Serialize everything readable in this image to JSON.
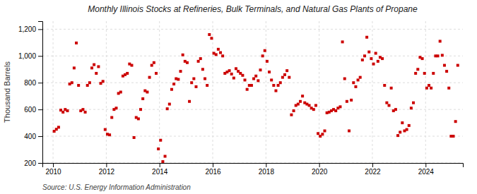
{
  "chart_data": {
    "type": "scatter",
    "title": "Monthly Illinois Stocks at Refineries, Bulk Terminals, and Natural Gas Plants of Propane",
    "y_label": "Thousand Barrels",
    "annotations": [
      "Source: U.S. Energy Information Administration"
    ],
    "color": "#cc0000",
    "marker": "square",
    "grid": true,
    "xlim": [
      2009.6,
      2025.4
    ],
    "ylim": [
      200,
      1260
    ],
    "xticks": [
      2010,
      2012,
      2014,
      2016,
      2018,
      2020,
      2022,
      2024
    ],
    "yticks": [
      200,
      400,
      600,
      800,
      {
        "value": 1000,
        "label": "1,000"
      },
      {
        "value": 1200,
        "label": "1,200"
      }
    ],
    "x": [
      2010.0416666666667,
      2010.125,
      2010.2083333333333,
      2010.2916666666667,
      2010.375,
      2010.4583333333333,
      2010.5416666666667,
      2010.625,
      2010.7083333333333,
      2010.7916666666667,
      2010.875,
      2010.9583333333333,
      2011.0416666666667,
      2011.125,
      2011.2083333333333,
      2011.2916666666667,
      2011.375,
      2011.4583333333333,
      2011.5416666666667,
      2011.625,
      2011.7083333333333,
      2011.7916666666667,
      2011.875,
      2011.9583333333333,
      2012.0416666666667,
      2012.125,
      2012.2083333333333,
      2012.2916666666667,
      2012.375,
      2012.4583333333333,
      2012.5416666666667,
      2012.625,
      2012.7083333333333,
      2012.7916666666667,
      2012.875,
      2012.9583333333333,
      2013.0416666666667,
      2013.125,
      2013.2083333333333,
      2013.2916666666667,
      2013.375,
      2013.4583333333333,
      2013.5416666666667,
      2013.625,
      2013.7083333333333,
      2013.7916666666667,
      2013.875,
      2013.9583333333333,
      2014.0416666666667,
      2014.125,
      2014.2083333333333,
      2014.2916666666667,
      2014.375,
      2014.4583333333333,
      2014.5416666666667,
      2014.625,
      2014.7083333333333,
      2014.7916666666667,
      2014.875,
      2014.9583333333333,
      2015.0416666666667,
      2015.125,
      2015.2083333333333,
      2015.2916666666667,
      2015.375,
      2015.4583333333333,
      2015.5416666666667,
      2015.625,
      2015.7083333333333,
      2015.7916666666667,
      2015.875,
      2015.9583333333333,
      2016.0416666666667,
      2016.125,
      2016.2083333333333,
      2016.2916666666667,
      2016.375,
      2016.4583333333333,
      2016.5416666666667,
      2016.625,
      2016.7083333333333,
      2016.7916666666667,
      2016.875,
      2016.9583333333333,
      2017.0416666666667,
      2017.125,
      2017.2083333333333,
      2017.2916666666667,
      2017.375,
      2017.4583333333333,
      2017.5416666666667,
      2017.625,
      2017.7083333333333,
      2017.7916666666667,
      2017.875,
      2017.9583333333333,
      2018.0416666666667,
      2018.125,
      2018.2083333333333,
      2018.2916666666667,
      2018.375,
      2018.4583333333333,
      2018.5416666666667,
      2018.625,
      2018.7083333333333,
      2018.7916666666667,
      2018.875,
      2018.9583333333333,
      2019.0416666666667,
      2019.125,
      2019.2083333333333,
      2019.2916666666667,
      2019.375,
      2019.4583333333333,
      2019.5416666666667,
      2019.625,
      2019.7083333333333,
      2019.7916666666667,
      2019.875,
      2019.9583333333333,
      2020.0416666666667,
      2020.125,
      2020.2083333333333,
      2020.2916666666667,
      2020.375,
      2020.4583333333333,
      2020.5416666666667,
      2020.625,
      2020.7083333333333,
      2020.7916666666667,
      2020.875,
      2020.9583333333333,
      2021.0416666666667,
      2021.125,
      2021.2083333333333,
      2021.2916666666667,
      2021.375,
      2021.4583333333333,
      2021.5416666666667,
      2021.625,
      2021.7083333333333,
      2021.7916666666667,
      2021.875,
      2021.9583333333333,
      2022.0416666666667,
      2022.125,
      2022.2083333333333,
      2022.2916666666667,
      2022.375,
      2022.4583333333333,
      2022.5416666666667,
      2022.625,
      2022.7083333333333,
      2022.7916666666667,
      2022.875,
      2022.9583333333333,
      2023.0416666666667,
      2023.125,
      2023.2083333333333,
      2023.2916666666667,
      2023.375,
      2023.4583333333333,
      2023.5416666666667,
      2023.625,
      2023.7083333333333,
      2023.7916666666667,
      2023.875,
      2023.9583333333333,
      2024.0416666666667,
      2024.125,
      2024.2083333333333,
      2024.2916666666667,
      2024.375,
      2024.4583333333333,
      2024.5416666666667,
      2024.625,
      2024.7083333333333,
      2024.7916666666667,
      2024.875,
      2024.9583333333333,
      2025.0416666666667,
      2025.125,
      2025.2083333333333
    ],
    "values": [
      437,
      452,
      467,
      595,
      580,
      600,
      590,
      790,
      800,
      910,
      1097,
      780,
      590,
      600,
      580,
      780,
      800,
      910,
      935,
      870,
      920,
      795,
      810,
      450,
      415,
      410,
      540,
      600,
      610,
      720,
      730,
      850,
      860,
      870,
      940,
      930,
      390,
      540,
      530,
      600,
      680,
      740,
      730,
      840,
      930,
      950,
      870,
      305,
      370,
      210,
      250,
      605,
      640,
      750,
      790,
      830,
      825,
      885,
      1008,
      960,
      950,
      660,
      800,
      830,
      770,
      960,
      980,
      900,
      830,
      780,
      1160,
      1132,
      1020,
      1010,
      1050,
      1025,
      1000,
      870,
      880,
      890,
      865,
      835,
      905,
      885,
      870,
      855,
      820,
      750,
      780,
      780,
      830,
      850,
      815,
      895,
      1000,
      1040,
      960,
      880,
      820,
      780,
      740,
      780,
      800,
      840,
      860,
      890,
      840,
      560,
      590,
      630,
      640,
      660,
      700,
      650,
      640,
      630,
      610,
      600,
      630,
      420,
      400,
      415,
      440,
      575,
      580,
      590,
      600,
      590,
      610,
      620,
      1105,
      830,
      660,
      440,
      670,
      800,
      770,
      820,
      840,
      970,
      1000,
      1140,
      1030,
      980,
      940,
      1020,
      960,
      990,
      980,
      780,
      650,
      630,
      760,
      590,
      600,
      405,
      430,
      500,
      440,
      450,
      480,
      610,
      650,
      870,
      900,
      990,
      980,
      870,
      760,
      780,
      760,
      870,
      1000,
      1000,
      1110,
      1005,
      930,
      885,
      760,
      400,
      400,
      510,
      930
    ]
  }
}
